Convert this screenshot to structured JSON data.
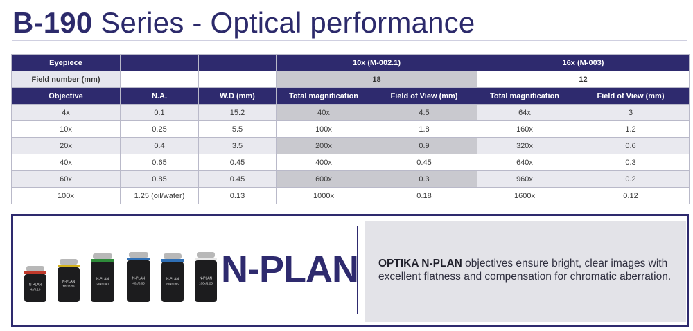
{
  "title": {
    "bold": "B-190",
    "rest": " Series - Optical performance"
  },
  "table": {
    "eyepiece_label": "Eyepiece",
    "eyepiece_10x": "10x (M-002.1)",
    "eyepiece_16x": "16x (M-003)",
    "field_label": "Field number (mm)",
    "field_10x": "18",
    "field_16x": "12",
    "headers": [
      "Objective",
      "N.A.",
      "W.D (mm)",
      "Total magnification",
      "Field of View (mm)",
      "Total magnification",
      "Field of View (mm)"
    ],
    "rows": [
      [
        "4x",
        "0.1",
        "15.2",
        "40x",
        "4.5",
        "64x",
        "3"
      ],
      [
        "10x",
        "0.25",
        "5.5",
        "100x",
        "1.8",
        "160x",
        "1.2"
      ],
      [
        "20x",
        "0.4",
        "3.5",
        "200x",
        "0.9",
        "320x",
        "0.6"
      ],
      [
        "40x",
        "0.65",
        "0.45",
        "400x",
        "0.45",
        "640x",
        "0.3"
      ],
      [
        "60x",
        "0.85",
        "0.45",
        "600x",
        "0.3",
        "960x",
        "0.2"
      ],
      [
        "100x",
        "1.25 (oil/water)",
        "0.13",
        "1000x",
        "0.18",
        "1600x",
        "0.12"
      ]
    ]
  },
  "promo": {
    "heading": "N-PLAN",
    "desc_brand": "OPTIKA N-PLAN",
    "desc_rest": " objectives ensure bright, clear images with excellent flatness and compensation for chromatic aberration.",
    "lens_labels": [
      {
        "name": "N-PLAN",
        "spec": "4x/0.10",
        "band": "#c0392b"
      },
      {
        "name": "N-PLAN",
        "spec": "10x/0.25",
        "band": "#d4b21c"
      },
      {
        "name": "N-PLAN",
        "spec": "20x/0.40",
        "band": "#2e8b3a"
      },
      {
        "name": "N-PLAN",
        "spec": "40x/0.65",
        "band": "#2f6fb5"
      },
      {
        "name": "N-PLAN",
        "spec": "60x/0.85",
        "band": "#2f6fb5"
      },
      {
        "name": "N-PLAN",
        "spec": "100x/1.25",
        "band": "#e8e8e8"
      }
    ]
  }
}
